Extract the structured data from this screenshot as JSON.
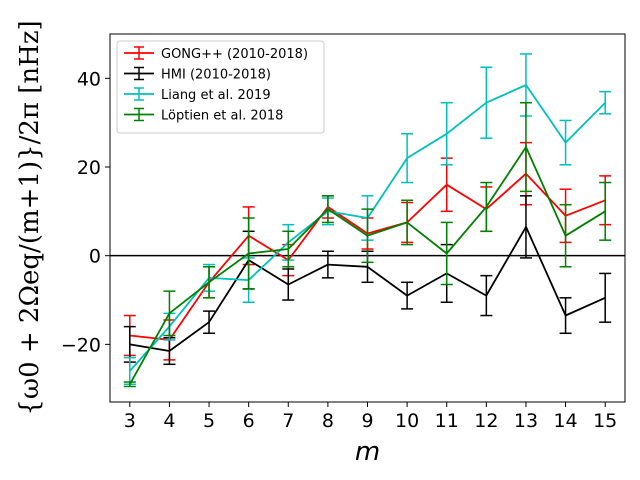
{
  "chart_data": {
    "type": "line",
    "xlabel": "m",
    "ylabel": "{ω0 + 2Ωeq/(m+1)}/2π [nHz]",
    "x": [
      3,
      4,
      5,
      6,
      7,
      8,
      9,
      10,
      11,
      12,
      13,
      14,
      15
    ],
    "xlim": [
      2.5,
      15.5
    ],
    "ylim": [
      -33,
      50
    ],
    "xticks": [
      3,
      4,
      5,
      6,
      7,
      8,
      9,
      10,
      11,
      12,
      13,
      14,
      15
    ],
    "yticks": [
      -20,
      0,
      20,
      40
    ],
    "xtick_labels": [
      "3",
      "4",
      "5",
      "6",
      "7",
      "8",
      "9",
      "10",
      "11",
      "12",
      "13",
      "14",
      "15"
    ],
    "ytick_labels": [
      "−20",
      "0",
      "20",
      "40"
    ],
    "hline": 0,
    "legend_position": "top-left",
    "series": [
      {
        "name": "GONG++ (2010-2018)",
        "color": "#ff0000",
        "values": [
          -18,
          -19,
          -6,
          4.5,
          -1,
          11,
          5,
          7.5,
          16,
          10.5,
          18.5,
          9,
          12.5
        ],
        "errors": [
          4.5,
          4.5,
          3.5,
          6.5,
          3.5,
          2.5,
          3.5,
          4.5,
          6,
          5,
          7,
          6,
          5.5
        ]
      },
      {
        "name": "HMI (2010-2018)",
        "color": "#000000",
        "values": [
          -20,
          -21.5,
          -15,
          -1,
          -6.5,
          -2,
          -2.5,
          -9,
          -4,
          -9,
          6.5,
          -13.5,
          -9.5
        ],
        "errors": [
          4,
          3,
          2.5,
          6.5,
          3.5,
          3,
          3.5,
          3,
          6.5,
          4.5,
          7,
          4,
          5.5
        ]
      },
      {
        "name": "Liang et al. 2019",
        "color": "#00bfbf",
        "values": [
          -26,
          -16,
          -5,
          -5.5,
          3,
          10,
          8.5,
          22,
          27.5,
          34.5,
          38.5,
          25.5,
          34.5
        ],
        "errors": [
          3,
          3,
          3,
          5,
          4,
          3,
          5,
          5.5,
          7,
          8,
          7,
          5,
          2.5
        ]
      },
      {
        "name": "Löptien et al. 2018",
        "color": "#008000",
        "values": [
          -29,
          -13,
          -6,
          0.5,
          1.5,
          10.5,
          4.5,
          7.5,
          0.5,
          11,
          24.5,
          4.5,
          10
        ],
        "errors": [
          0.5,
          5,
          3.5,
          8,
          4,
          3,
          6,
          5,
          7,
          5.5,
          10,
          7,
          6.5
        ]
      }
    ]
  }
}
